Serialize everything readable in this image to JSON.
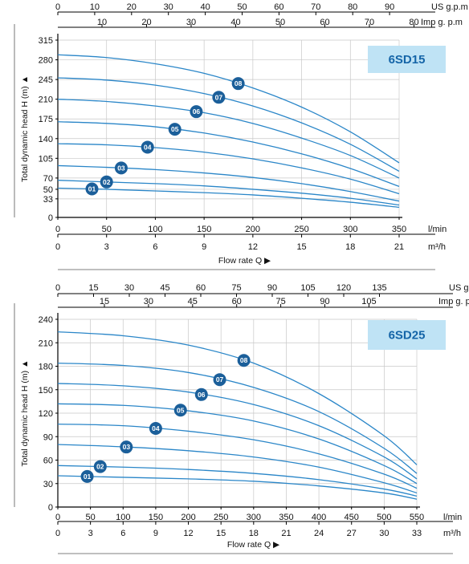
{
  "colors": {
    "curve": "#2a86c8",
    "badge": "#1b5f9a",
    "grid": "#c8c8c8",
    "model_box": "#bfe3f5",
    "model_text": "#1565a8",
    "axis": "#000000"
  },
  "chart_data": [
    {
      "type": "line",
      "model_label": "6SD15",
      "ylabel": "Total dynamic head H (m) ▲",
      "xlabel": "Flow rate Q ▶",
      "unit_lpm": "l/min",
      "unit_m3h": "m³/h",
      "unit_usgpm": "US g.p.m",
      "unit_impgpm": "Imp g. p.m",
      "ylim": [
        0,
        315
      ],
      "xlim": [
        0,
        350
      ],
      "y_ticks": [
        "0",
        "33",
        "50",
        "70",
        "105",
        "140",
        "175",
        "210",
        "245",
        "280",
        "315"
      ],
      "y_tick_values": [
        0,
        33,
        50,
        70,
        105,
        140,
        175,
        210,
        245,
        280,
        315
      ],
      "x_ticks_lpm": [
        "0",
        "50",
        "100",
        "150",
        "200",
        "250",
        "300",
        "350"
      ],
      "x_ticks_m3h": [
        "0",
        "3",
        "6",
        "9",
        "12",
        "15",
        "18",
        "21"
      ],
      "x_ticks_usgpm": [
        "0",
        "10",
        "20",
        "30",
        "40",
        "50",
        "60",
        "70",
        "80",
        "90"
      ],
      "x_ticks_impgpm": [
        "10",
        "20",
        "30",
        "40",
        "50",
        "60",
        "70",
        "80"
      ],
      "grid": true,
      "series": [
        {
          "name": "01",
          "label_at": 35,
          "x": [
            0,
            50,
            100,
            150,
            200,
            250,
            300,
            350
          ],
          "values": [
            52,
            50,
            47,
            44,
            40,
            34,
            27,
            18
          ]
        },
        {
          "name": "02",
          "label_at": 50,
          "x": [
            0,
            50,
            100,
            150,
            200,
            250,
            300,
            350
          ],
          "values": [
            66,
            63,
            60,
            56,
            50,
            43,
            34,
            22
          ]
        },
        {
          "name": "03",
          "label_at": 65,
          "x": [
            0,
            50,
            100,
            150,
            200,
            250,
            300,
            350
          ],
          "values": [
            92,
            89,
            85,
            79,
            71,
            60,
            46,
            29
          ]
        },
        {
          "name": "04",
          "label_at": 92,
          "x": [
            0,
            50,
            100,
            150,
            200,
            250,
            300,
            350
          ],
          "values": [
            131,
            129,
            124,
            116,
            104,
            88,
            68,
            42
          ]
        },
        {
          "name": "05",
          "label_at": 120,
          "x": [
            0,
            50,
            100,
            150,
            200,
            250,
            300,
            350
          ],
          "values": [
            170,
            167,
            161,
            150,
            134,
            113,
            87,
            55
          ]
        },
        {
          "name": "06",
          "label_at": 142,
          "x": [
            0,
            50,
            100,
            150,
            200,
            250,
            300,
            350
          ],
          "values": [
            210,
            206,
            198,
            186,
            167,
            141,
            110,
            70
          ]
        },
        {
          "name": "07",
          "label_at": 165,
          "x": [
            0,
            50,
            100,
            150,
            200,
            250,
            300,
            350
          ],
          "values": [
            248,
            244,
            235,
            220,
            198,
            168,
            130,
            82
          ]
        },
        {
          "name": "08",
          "label_at": 185,
          "x": [
            0,
            50,
            100,
            150,
            200,
            250,
            300,
            350
          ],
          "values": [
            289,
            284,
            273,
            256,
            230,
            196,
            152,
            97
          ]
        }
      ]
    },
    {
      "type": "line",
      "model_label": "6SD25",
      "ylabel": "Total dynamic head H (m) ▲",
      "xlabel": "Flow rate Q ▶",
      "unit_lpm": "l/min",
      "unit_m3h": "m³/h",
      "unit_usgpm": "US g.p.m",
      "unit_impgpm": "Imp g. p.m",
      "ylim": [
        0,
        240
      ],
      "xlim": [
        0,
        550
      ],
      "y_ticks": [
        "0",
        "30",
        "60",
        "90",
        "120",
        "150",
        "180",
        "210",
        "240"
      ],
      "y_tick_values": [
        0,
        30,
        60,
        90,
        120,
        150,
        180,
        210,
        240
      ],
      "x_ticks_lpm": [
        "0",
        "50",
        "100",
        "150",
        "200",
        "250",
        "300",
        "350",
        "400",
        "450",
        "500",
        "550"
      ],
      "x_ticks_m3h": [
        "0",
        "3",
        "6",
        "9",
        "12",
        "15",
        "18",
        "21",
        "24",
        "27",
        "30",
        "33"
      ],
      "x_ticks_usgpm": [
        "0",
        "15",
        "30",
        "45",
        "60",
        "75",
        "90",
        "105",
        "120",
        "135"
      ],
      "x_ticks_impgpm": [
        "15",
        "30",
        "45",
        "60",
        "75",
        "90",
        "105"
      ],
      "grid": true,
      "series": [
        {
          "name": "01",
          "label_at": 45,
          "x": [
            0,
            100,
            200,
            300,
            400,
            500,
            550
          ],
          "values": [
            40,
            38,
            36,
            33,
            27,
            18,
            10
          ]
        },
        {
          "name": "02",
          "label_at": 65,
          "x": [
            0,
            100,
            200,
            300,
            400,
            500,
            550
          ],
          "values": [
            53,
            51,
            48,
            43,
            35,
            23,
            14
          ]
        },
        {
          "name": "03",
          "label_at": 105,
          "x": [
            0,
            100,
            200,
            300,
            400,
            500,
            550
          ],
          "values": [
            80,
            77,
            72,
            64,
            51,
            31,
            18
          ]
        },
        {
          "name": "04",
          "label_at": 150,
          "x": [
            0,
            100,
            200,
            300,
            400,
            500,
            550
          ],
          "values": [
            106,
            104,
            97,
            86,
            68,
            42,
            24
          ]
        },
        {
          "name": "05",
          "label_at": 188,
          "x": [
            0,
            100,
            200,
            300,
            400,
            500,
            550
          ],
          "values": [
            132,
            130,
            123,
            110,
            87,
            53,
            30
          ]
        },
        {
          "name": "06",
          "label_at": 220,
          "x": [
            0,
            100,
            200,
            300,
            400,
            500,
            550
          ],
          "values": [
            158,
            155,
            147,
            131,
            104,
            64,
            36
          ]
        },
        {
          "name": "07",
          "label_at": 248,
          "x": [
            0,
            100,
            200,
            300,
            400,
            500,
            550
          ],
          "values": [
            184,
            181,
            172,
            153,
            122,
            75,
            43
          ]
        },
        {
          "name": "08",
          "label_at": 285,
          "x": [
            0,
            100,
            200,
            300,
            400,
            500,
            550
          ],
          "values": [
            224,
            219,
            207,
            184,
            145,
            91,
            54
          ]
        }
      ]
    }
  ]
}
